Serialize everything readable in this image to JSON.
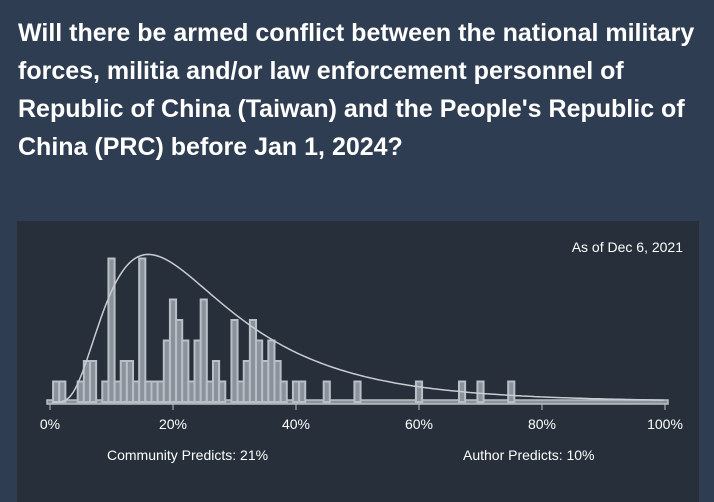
{
  "question": {
    "title": "Will there be armed conflict between the national military forces, militia and/or law enforcement personnel of Republic of China (Taiwan) and the People's Republic of China (PRC) before Jan 1, 2024?"
  },
  "panel": {
    "as_of": "As of Dec 6, 2021",
    "community_predicts": "Community Predicts: 21%",
    "author_predicts": "Author Predicts: 10%"
  },
  "colors": {
    "page_bg": "#2e3d51",
    "panel_bg": "#262f3a",
    "bar_fill": "#8a929b",
    "bar_stroke": "#b9bfc6",
    "curve": "#c9cdd2",
    "text": "#ffffff"
  },
  "chart_data": {
    "type": "bar",
    "xlabel": "",
    "ylabel": "",
    "xlim": [
      0,
      100
    ],
    "x_ticks": [
      "0%",
      "20%",
      "40%",
      "60%",
      "80%",
      "100%"
    ],
    "bins": [
      {
        "x": 1,
        "h": 1
      },
      {
        "x": 2,
        "h": 1
      },
      {
        "x": 5,
        "h": 1
      },
      {
        "x": 6,
        "h": 2
      },
      {
        "x": 7,
        "h": 2
      },
      {
        "x": 9,
        "h": 1
      },
      {
        "x": 10,
        "h": 7
      },
      {
        "x": 11,
        "h": 1
      },
      {
        "x": 12,
        "h": 2
      },
      {
        "x": 13,
        "h": 2
      },
      {
        "x": 14,
        "h": 1
      },
      {
        "x": 15,
        "h": 7
      },
      {
        "x": 16,
        "h": 1
      },
      {
        "x": 17,
        "h": 1
      },
      {
        "x": 18,
        "h": 1
      },
      {
        "x": 19,
        "h": 3
      },
      {
        "x": 20,
        "h": 5
      },
      {
        "x": 21,
        "h": 4
      },
      {
        "x": 22,
        "h": 3
      },
      {
        "x": 23,
        "h": 1
      },
      {
        "x": 24,
        "h": 3
      },
      {
        "x": 25,
        "h": 5
      },
      {
        "x": 26,
        "h": 1
      },
      {
        "x": 27,
        "h": 2
      },
      {
        "x": 28,
        "h": 1
      },
      {
        "x": 30,
        "h": 4
      },
      {
        "x": 31,
        "h": 1
      },
      {
        "x": 32,
        "h": 2
      },
      {
        "x": 33,
        "h": 4
      },
      {
        "x": 34,
        "h": 3
      },
      {
        "x": 35,
        "h": 2
      },
      {
        "x": 36,
        "h": 3
      },
      {
        "x": 37,
        "h": 2
      },
      {
        "x": 38,
        "h": 1
      },
      {
        "x": 40,
        "h": 1
      },
      {
        "x": 41,
        "h": 1
      },
      {
        "x": 45,
        "h": 1
      },
      {
        "x": 50,
        "h": 1
      },
      {
        "x": 60,
        "h": 1
      },
      {
        "x": 67,
        "h": 1
      },
      {
        "x": 70,
        "h": 1
      },
      {
        "x": 75,
        "h": 1
      }
    ],
    "curve": {
      "mode_x": 16,
      "peak_h": 7.2
    }
  }
}
